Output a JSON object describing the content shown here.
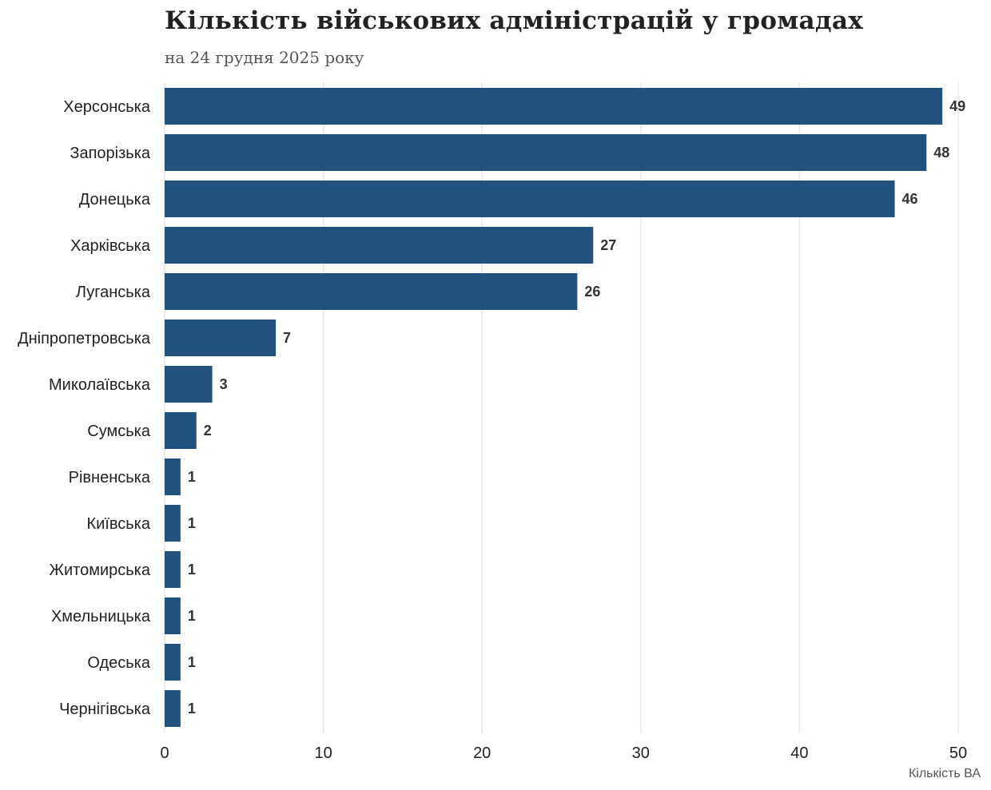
{
  "chart_data": {
    "type": "bar",
    "orientation": "horizontal",
    "title": "Кількість військових адміністрацій у громадах",
    "subtitle": "на 24 грудня 2025 року",
    "xlabel": "Кількість ВА",
    "ylabel": "",
    "xlim": [
      0,
      50
    ],
    "xticks": [
      0,
      10,
      20,
      30,
      40,
      50
    ],
    "grid": "vertical",
    "bar_color": "#23517e",
    "categories": [
      "Херсонська",
      "Запорізька",
      "Донецька",
      "Харківська",
      "Луганська",
      "Дніпропетровська",
      "Миколаївська",
      "Сумська",
      "Рівненська",
      "Київська",
      "Житомирська",
      "Хмельницька",
      "Одеська",
      "Чернігівська"
    ],
    "values": [
      49,
      48,
      46,
      27,
      26,
      7,
      3,
      2,
      1,
      1,
      1,
      1,
      1,
      1
    ]
  }
}
